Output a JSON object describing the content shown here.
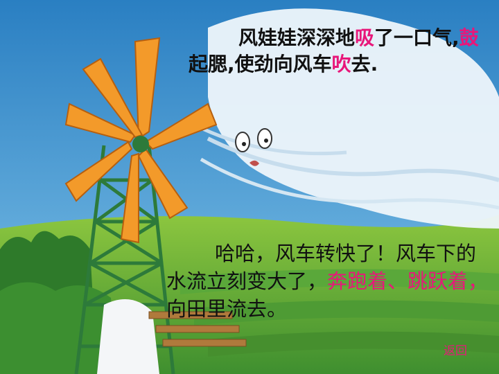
{
  "paragraph1": {
    "t1": "风娃娃深深地",
    "h1": "吸",
    "t2": "了一口气,",
    "h2": "鼓",
    "t3": "起腮,使劲向风车",
    "h3": "吹",
    "t4": "去."
  },
  "paragraph2": {
    "t1": "哈哈，风车转快了！风车下的水流立刻变大了，",
    "h1": "奔跑着、跳跃着，",
    "t2": "向田里流去。"
  },
  "back_label": "返回",
  "colors": {
    "highlight": "#e8177a",
    "sky": "#2f88c6",
    "grass": "#3f8f2f"
  }
}
